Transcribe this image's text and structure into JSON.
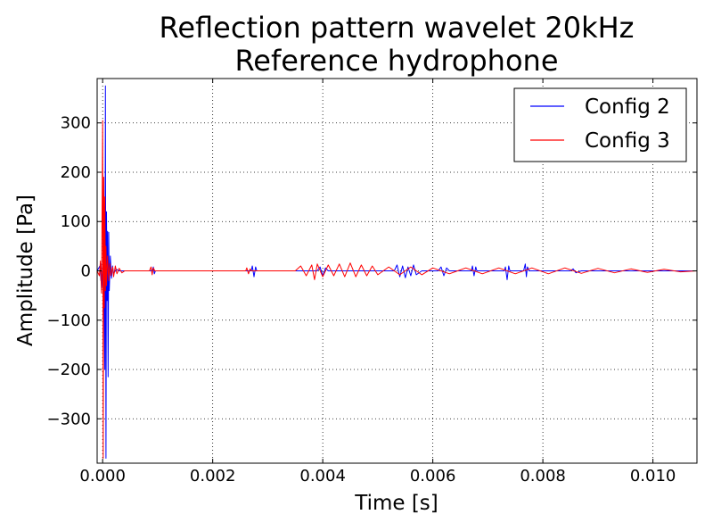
{
  "chart_data": {
    "type": "line",
    "title": [
      "Reflection pattern wavelet 20kHz",
      "Reference hydrophone"
    ],
    "xlabel": "Time [s]",
    "ylabel": "Amplitude [Pa]",
    "xlim": [
      -0.0001,
      0.0108
    ],
    "ylim": [
      -390,
      390
    ],
    "xticks": [
      0.0,
      0.002,
      0.004,
      0.006,
      0.008,
      0.01
    ],
    "xtick_labels": [
      "0.000",
      "0.002",
      "0.004",
      "0.006",
      "0.008",
      "0.010"
    ],
    "yticks": [
      300,
      200,
      100,
      0,
      -100,
      -200,
      -300
    ],
    "ytick_labels": [
      "300",
      "200",
      "100",
      "0",
      "−100",
      "−200",
      "−300"
    ],
    "grid": true,
    "legend_position": "top-right",
    "series": [
      {
        "name": "Config 2",
        "color": "#0000ff",
        "points": [
          [
            -0.0001,
            0
          ],
          [
            -5e-05,
            10
          ],
          [
            -3e-05,
            -20
          ],
          [
            -2e-05,
            15
          ],
          [
            0.0,
            -35
          ],
          [
            2e-05,
            60
          ],
          [
            4e-05,
            -200
          ],
          [
            5e-05,
            375
          ],
          [
            6e-05,
            -380
          ],
          [
            7e-05,
            120
          ],
          [
            8e-05,
            -60
          ],
          [
            9e-05,
            80
          ],
          [
            0.0001,
            -215
          ],
          [
            0.00011,
            78
          ],
          [
            0.00012,
            -40
          ],
          [
            0.00014,
            30
          ],
          [
            0.00016,
            -15
          ],
          [
            0.00018,
            10
          ],
          [
            0.0002,
            -5
          ],
          [
            0.00025,
            3
          ],
          [
            0.0003,
            0
          ],
          [
            0.0009,
            0
          ],
          [
            0.00092,
            8
          ],
          [
            0.00094,
            -6
          ],
          [
            0.00096,
            0
          ],
          [
            0.0027,
            0
          ],
          [
            0.00272,
            10
          ],
          [
            0.00275,
            -12
          ],
          [
            0.00278,
            8
          ],
          [
            0.0028,
            0
          ],
          [
            0.0039,
            0
          ],
          [
            0.00395,
            8
          ],
          [
            0.004,
            -10
          ],
          [
            0.00405,
            6
          ],
          [
            0.0041,
            0
          ],
          [
            0.0053,
            0
          ],
          [
            0.00535,
            12
          ],
          [
            0.0054,
            -12
          ],
          [
            0.00545,
            10
          ],
          [
            0.0055,
            -14
          ],
          [
            0.00555,
            8
          ],
          [
            0.0056,
            -10
          ],
          [
            0.00565,
            12
          ],
          [
            0.0057,
            -8
          ],
          [
            0.0058,
            0
          ],
          [
            0.0061,
            0
          ],
          [
            0.00615,
            8
          ],
          [
            0.0062,
            -10
          ],
          [
            0.00625,
            6
          ],
          [
            0.0063,
            0
          ],
          [
            0.0067,
            0
          ],
          [
            0.00672,
            10
          ],
          [
            0.00675,
            -10
          ],
          [
            0.00678,
            8
          ],
          [
            0.0068,
            0
          ],
          [
            0.0073,
            0
          ],
          [
            0.00732,
            8
          ],
          [
            0.00735,
            -18
          ],
          [
            0.00738,
            10
          ],
          [
            0.0074,
            0
          ],
          [
            0.00765,
            0
          ],
          [
            0.00768,
            14
          ],
          [
            0.0077,
            -12
          ],
          [
            0.00772,
            8
          ],
          [
            0.00775,
            0
          ],
          [
            0.0085,
            0
          ],
          [
            0.00855,
            4
          ],
          [
            0.0086,
            -4
          ],
          [
            0.0087,
            0
          ],
          [
            0.0108,
            0
          ]
        ]
      },
      {
        "name": "Config 3",
        "color": "#ff0000",
        "points": [
          [
            -0.0001,
            0
          ],
          [
            -6e-05,
            -10
          ],
          [
            -4e-05,
            20
          ],
          [
            -2e-05,
            -45
          ],
          [
            0.0,
            305
          ],
          [
            1e-05,
            -380
          ],
          [
            2e-05,
            190
          ],
          [
            3e-05,
            -75
          ],
          [
            4e-05,
            150
          ],
          [
            5e-05,
            -40
          ],
          [
            6e-05,
            50
          ],
          [
            7e-05,
            -30
          ],
          [
            9e-05,
            30
          ],
          [
            0.00011,
            -20
          ],
          [
            0.00013,
            15
          ],
          [
            0.00015,
            -10
          ],
          [
            0.00018,
            8
          ],
          [
            0.0002,
            -12
          ],
          [
            0.00023,
            10
          ],
          [
            0.00026,
            -6
          ],
          [
            0.0003,
            5
          ],
          [
            0.00035,
            -4
          ],
          [
            0.0004,
            0
          ],
          [
            0.00085,
            0
          ],
          [
            0.00088,
            8
          ],
          [
            0.0009,
            -8
          ],
          [
            0.00092,
            6
          ],
          [
            0.00095,
            0
          ],
          [
            0.0026,
            0
          ],
          [
            0.00262,
            6
          ],
          [
            0.00265,
            -6
          ],
          [
            0.00268,
            4
          ],
          [
            0.0027,
            0
          ],
          [
            0.0035,
            0
          ],
          [
            0.0036,
            10
          ],
          [
            0.0037,
            -10
          ],
          [
            0.0038,
            12
          ],
          [
            0.00385,
            -18
          ],
          [
            0.0039,
            14
          ],
          [
            0.004,
            -12
          ],
          [
            0.0041,
            12
          ],
          [
            0.0042,
            -10
          ],
          [
            0.0043,
            14
          ],
          [
            0.0044,
            -12
          ],
          [
            0.0045,
            16
          ],
          [
            0.0046,
            -12
          ],
          [
            0.0047,
            12
          ],
          [
            0.0048,
            -10
          ],
          [
            0.0049,
            10
          ],
          [
            0.005,
            -8
          ],
          [
            0.0052,
            8
          ],
          [
            0.0054,
            -8
          ],
          [
            0.0056,
            8
          ],
          [
            0.0058,
            -8
          ],
          [
            0.006,
            6
          ],
          [
            0.0063,
            -6
          ],
          [
            0.0066,
            6
          ],
          [
            0.0069,
            -6
          ],
          [
            0.0072,
            6
          ],
          [
            0.0075,
            -6
          ],
          [
            0.0078,
            6
          ],
          [
            0.0081,
            -6
          ],
          [
            0.0084,
            6
          ],
          [
            0.0087,
            -5
          ],
          [
            0.009,
            5
          ],
          [
            0.0093,
            -4
          ],
          [
            0.0096,
            4
          ],
          [
            0.0099,
            -3
          ],
          [
            0.0102,
            3
          ],
          [
            0.0105,
            -2
          ],
          [
            0.0108,
            0
          ]
        ]
      }
    ]
  }
}
